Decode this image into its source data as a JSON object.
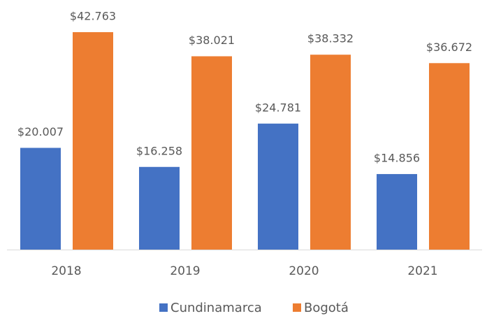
{
  "chart_data": {
    "type": "bar",
    "categories": [
      "2018",
      "2019",
      "2020",
      "2021"
    ],
    "series": [
      {
        "name": "Cundinamarca",
        "color": "#4472c4",
        "values": [
          20007,
          16258,
          24781,
          14856
        ],
        "value_labels": [
          "$20.007",
          "$16.258",
          "$24.781",
          "$14.856"
        ]
      },
      {
        "name": "Bogotá",
        "color": "#ed7d31",
        "values": [
          42763,
          38021,
          38332,
          36672
        ],
        "value_labels": [
          "$42.763",
          "$38.021",
          "$38.332",
          "$36.672"
        ]
      }
    ],
    "legend": "bottom"
  }
}
